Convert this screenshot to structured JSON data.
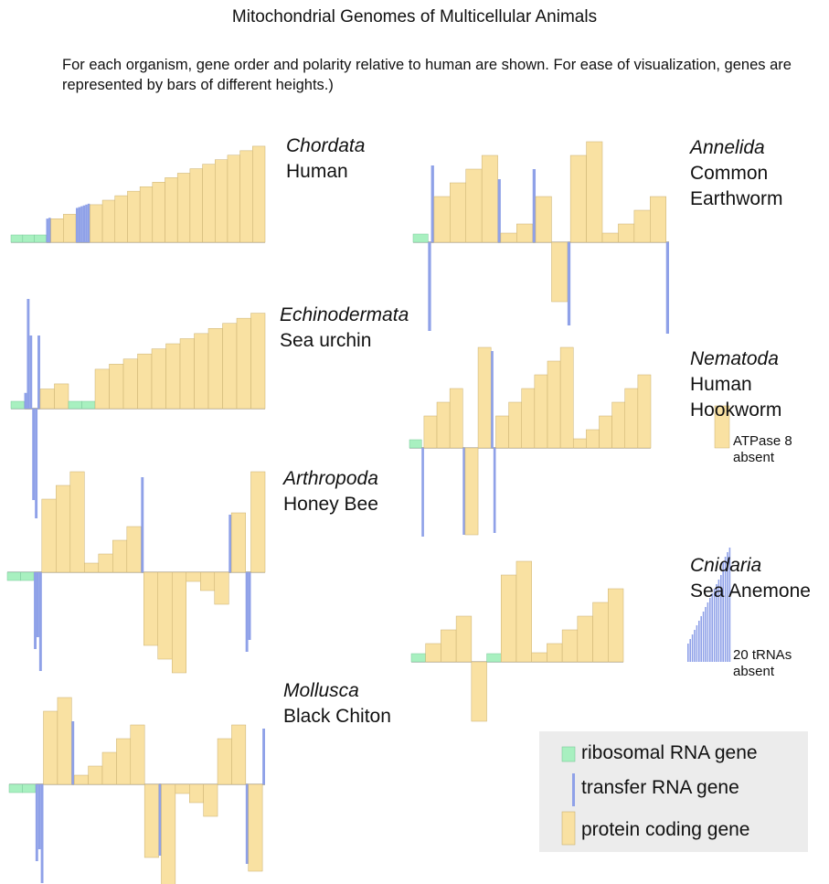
{
  "title": "Mitochondrial Genomes of Multicellular Animals",
  "subtitle": "For each organism, gene order and polarity relative to human are shown. For ease of visualization, genes are represented by bars of different heights.)",
  "colors": {
    "rrna": "#a8f0c0",
    "trna": "#8fa1e8",
    "protein": "#f9e1a2",
    "baseline": "#666666"
  },
  "panels": [
    {
      "phylum": "Chordata",
      "organism": "Human",
      "seq": "rrrttppttttttpppppppppppppp",
      "note": ""
    },
    {
      "phylum": "Annelida",
      "organism": "Common Earthworm",
      "seq": "rttpppptpptpptppppppt",
      "note": ""
    },
    {
      "phylum": "Echinodermata",
      "organism": "Sea urchin",
      "seq": "rttttttpprrpppppppppppp",
      "note": ""
    },
    {
      "phylum": "Nematoda",
      "organism": "Human Hookworm",
      "seq": "rtppptppttpppppppppppp",
      "note": "ATPase 8 absent"
    },
    {
      "phylum": "Arthropoda",
      "organism": "Honey Bee",
      "seq": "rrtttppppppptpppppptpttp",
      "note": ""
    },
    {
      "phylum": "Cnidaria",
      "organism": "Sea Anemone",
      "seq": "rpppprpppppppp",
      "note": "20 tRNAs absent"
    },
    {
      "phylum": "Mollusca",
      "organism": "Black Chiton",
      "seq": "rrtttpptpppppptpppppptpt",
      "note": ""
    }
  ],
  "legend": [
    {
      "type": "rrna",
      "label": "ribosomal RNA gene"
    },
    {
      "type": "trna",
      "label": "transfer RNA gene"
    },
    {
      "type": "protein",
      "label": "protein coding gene"
    }
  ]
}
